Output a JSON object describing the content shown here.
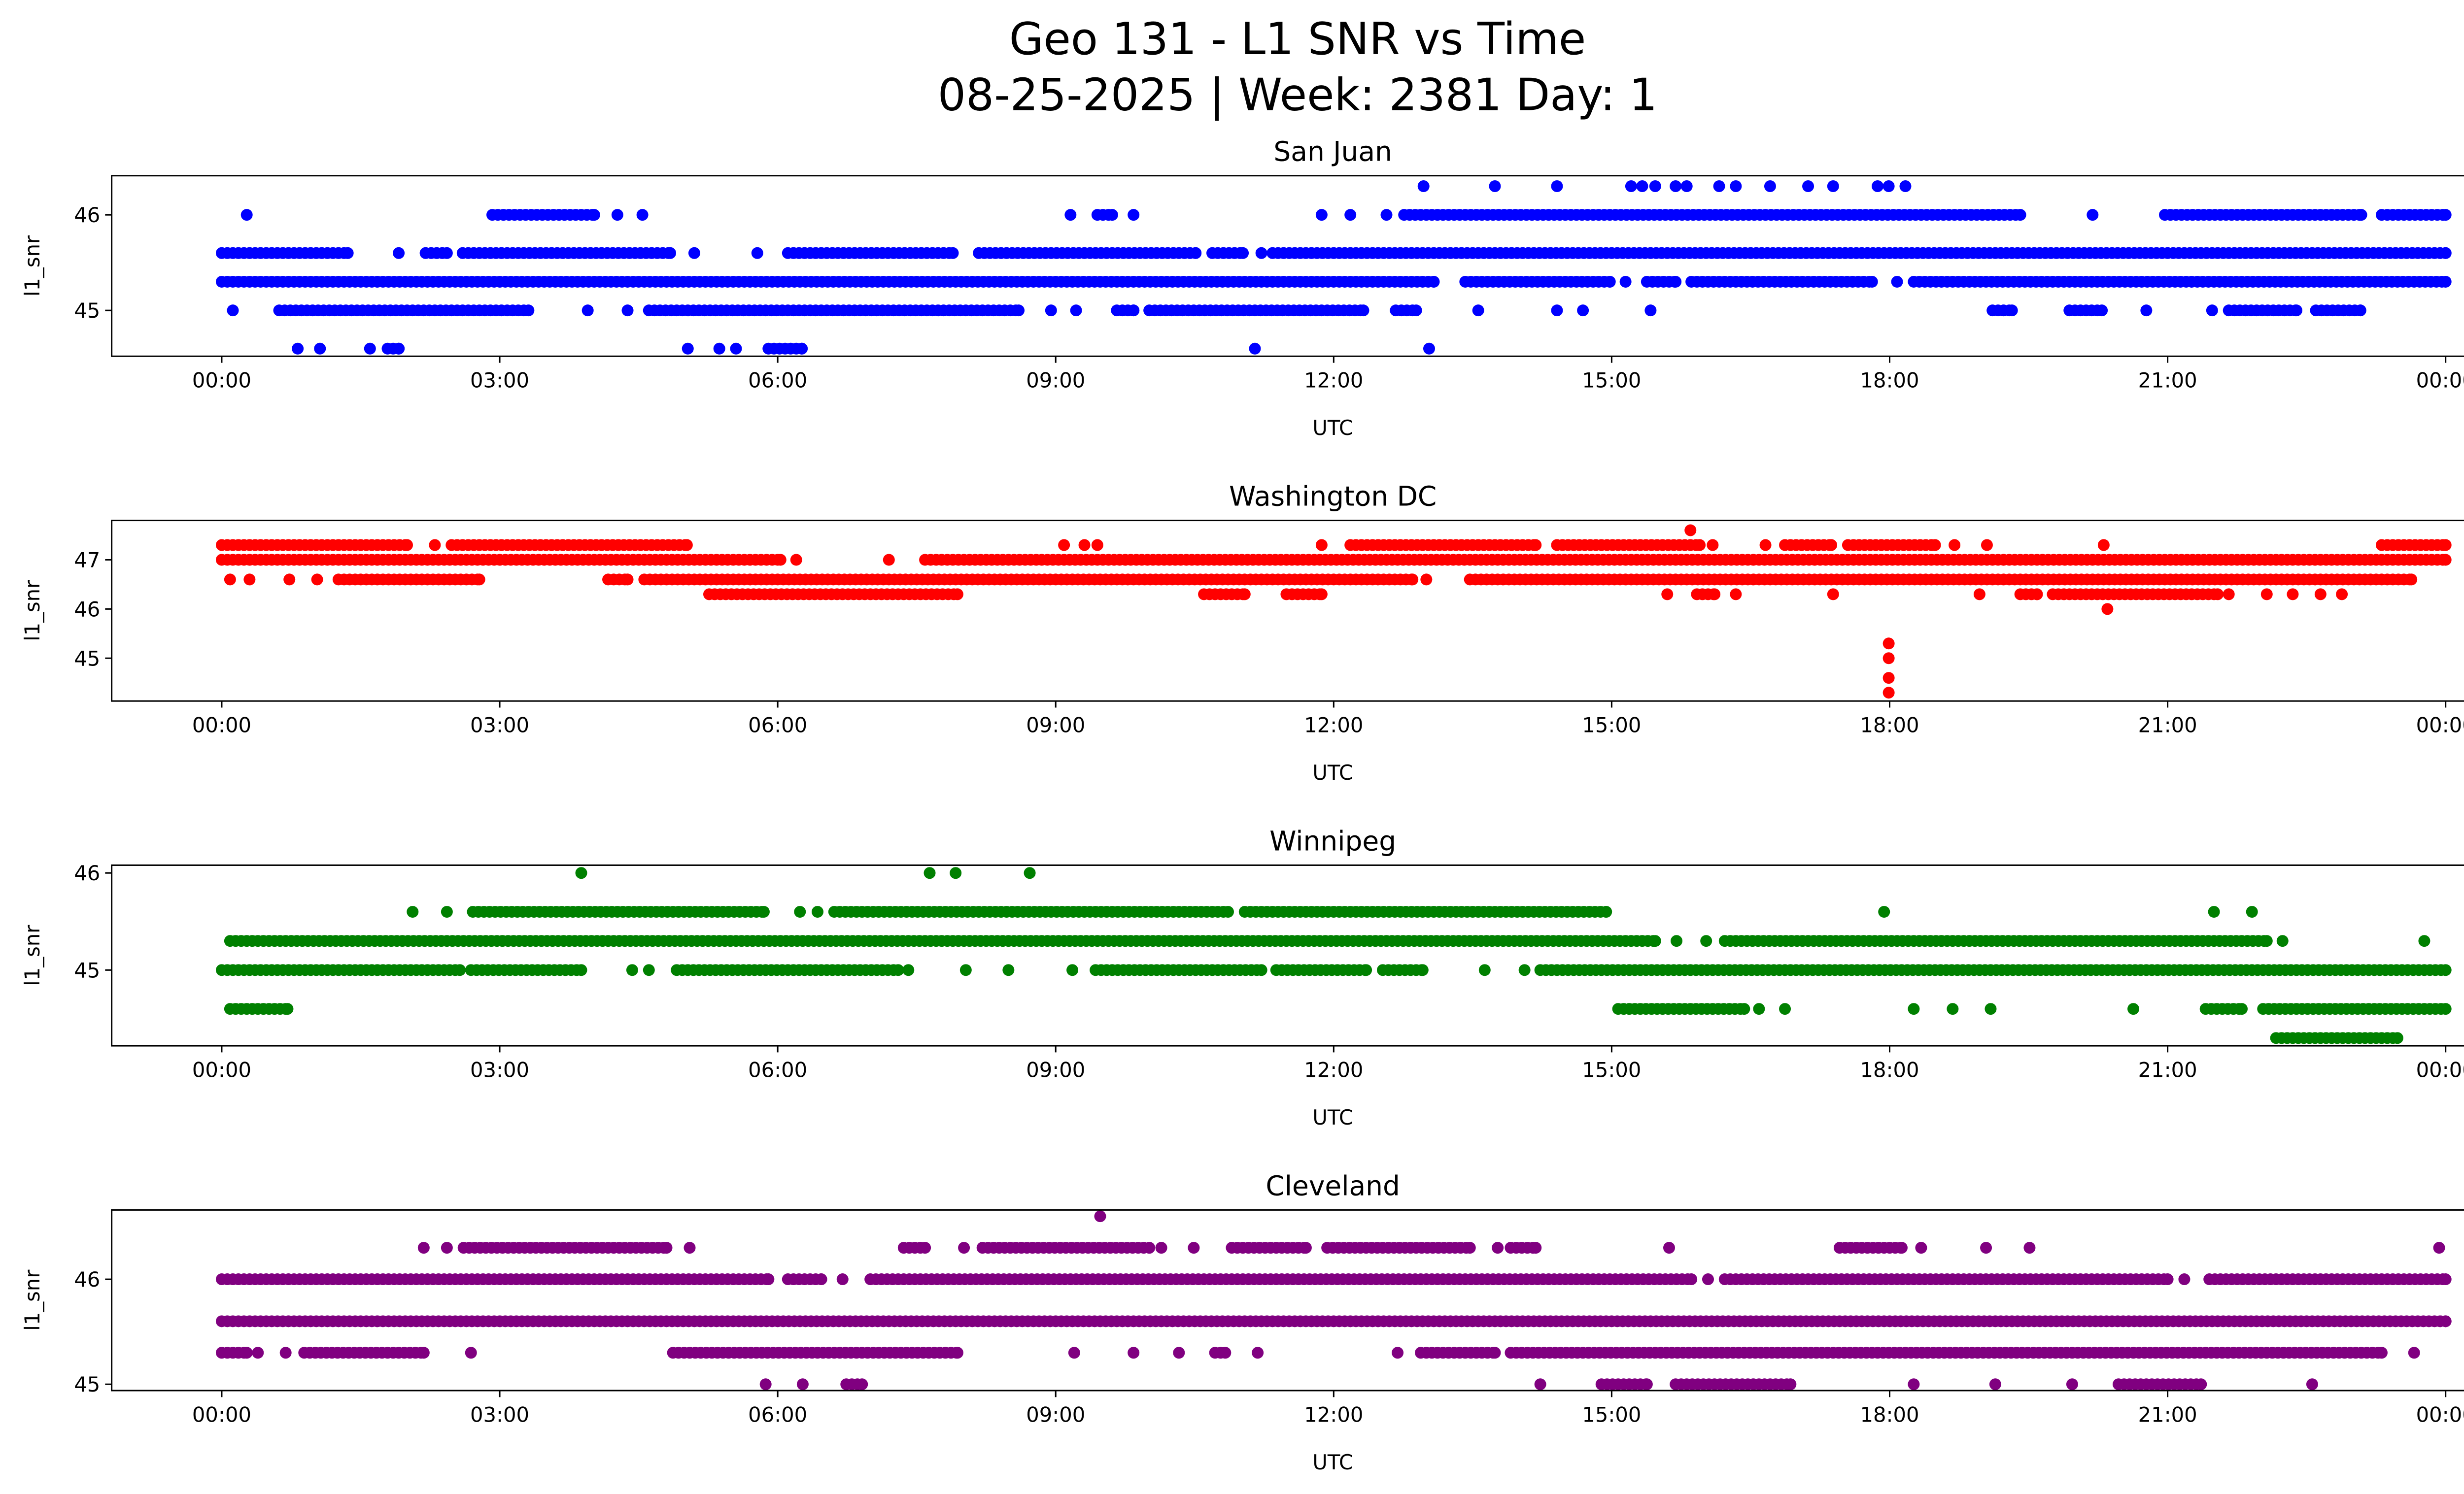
{
  "title": "Geo 131 - L1 SNR vs Time",
  "subtitle": "08-25-2025 | Week: 2381 Day: 1",
  "chart_data": [
    {
      "type": "scatter",
      "title": "San Juan",
      "xlabel": "UTC",
      "ylabel": "l1_snr",
      "color": "#0000ff",
      "xlim": [
        0,
        24
      ],
      "ylim": [
        44.52,
        46.41
      ],
      "xticks": [
        0,
        3,
        6,
        9,
        12,
        15,
        18,
        21,
        24
      ],
      "xtick_labels": [
        "00:00",
        "03:00",
        "06:00",
        "09:00",
        "12:00",
        "15:00",
        "18:00",
        "21:00",
        "00:00"
      ],
      "yticks": [
        45,
        46
      ],
      "ytick_labels": [
        "45",
        "46"
      ],
      "series": [
        {
          "y": 46.3,
          "x": [
            12.97,
            13.74,
            14.41,
            15.21,
            15.33,
            15.47,
            15.69,
            15.81,
            16.16,
            16.34,
            16.71,
            17.12,
            17.39,
            17.87,
            17.99,
            18.17
          ]
        },
        {
          "y": 46.0,
          "x": [
            0.27,
            [
              2.92,
              4.02
            ],
            4.27,
            4.54,
            9.16,
            [
              9.45,
              9.61
            ],
            9.84,
            11.87,
            12.18,
            12.57,
            [
              12.76,
              19.41
            ],
            20.19,
            [
              20.97,
              23.09
            ],
            [
              23.31,
              24
            ]
          ]
        },
        {
          "y": 45.6,
          "x": [
            [
              0,
              1.36
            ],
            1.91,
            [
              2.2,
              2.43
            ],
            [
              2.6,
              4.84
            ],
            5.1,
            5.78,
            [
              6.11,
              7.89
            ],
            [
              8.17,
              10.51
            ],
            [
              10.69,
              11.02
            ],
            11.22,
            [
              11.34,
              24
            ]
          ]
        },
        {
          "y": 45.3,
          "x": [
            [
              0,
              13.08
            ],
            [
              13.42,
              14.98
            ],
            15.15,
            [
              15.38,
              15.69
            ],
            [
              15.86,
              17.81
            ],
            18.08,
            [
              18.26,
              24
            ]
          ]
        },
        {
          "y": 45.0,
          "x": [
            0.12,
            [
              0.62,
              3.31
            ],
            3.95,
            4.38,
            [
              4.61,
              8.6
            ],
            8.95,
            9.22,
            [
              9.66,
              9.84
            ],
            [
              10.01,
              12.32
            ],
            [
              12.67,
              12.89
            ],
            13.56,
            14.41,
            14.69,
            15.42,
            [
              19.11,
              19.32
            ],
            [
              19.94,
              20.29
            ],
            20.77,
            21.48,
            [
              21.66,
              22.39
            ],
            [
              22.6,
              23.08
            ]
          ]
        },
        {
          "y": 44.6,
          "x": [
            0.82,
            1.06,
            1.6,
            [
              1.79,
              1.91
            ],
            5.03,
            5.37,
            5.55,
            [
              5.9,
              6.26
            ],
            11.15,
            13.03
          ]
        }
      ]
    },
    {
      "type": "scatter",
      "title": "Washington DC",
      "xlabel": "UTC",
      "ylabel": "l1_snr",
      "color": "#ff0000",
      "xlim": [
        0,
        24
      ],
      "ylim": [
        44.13,
        47.8
      ],
      "xticks": [
        0,
        3,
        6,
        9,
        12,
        15,
        18,
        21,
        24
      ],
      "xtick_labels": [
        "00:00",
        "03:00",
        "06:00",
        "09:00",
        "12:00",
        "15:00",
        "18:00",
        "21:00",
        "00:00"
      ],
      "yticks": [
        45,
        46,
        47
      ],
      "ytick_labels": [
        "45",
        "46",
        "47"
      ],
      "series": [
        {
          "y": 47.6,
          "x": [
            15.85
          ]
        },
        {
          "y": 47.3,
          "x": [
            [
              0,
              2.0
            ],
            2.3,
            [
              2.48,
              5.02
            ],
            9.09,
            9.31,
            9.45,
            11.87,
            [
              12.18,
              14.18
            ],
            [
              14.41,
              15.95
            ],
            16.09,
            16.66,
            [
              16.87,
              17.37
            ],
            [
              17.55,
              18.49
            ],
            18.7,
            19.05,
            20.31,
            [
              23.31,
              24
            ]
          ]
        },
        {
          "y": 47.0,
          "x": [
            [
              0,
              6.03
            ],
            6.2,
            7.2,
            [
              7.59,
              24
            ]
          ]
        },
        {
          "y": 46.6,
          "x": [
            0.09,
            0.3,
            0.73,
            1.03,
            [
              1.26,
              2.78
            ],
            [
              4.17,
              4.38
            ],
            [
              4.56,
              12.85
            ],
            13.0,
            [
              13.47,
              23.63
            ]
          ]
        },
        {
          "y": 46.3,
          "x": [
            [
              5.26,
              7.94
            ],
            [
              10.6,
              11.04
            ],
            [
              11.49,
              11.87
            ],
            15.6,
            [
              15.92,
              16.11
            ],
            16.34,
            17.39,
            18.97,
            [
              19.41,
              19.59
            ],
            [
              19.76,
              21.54
            ],
            21.66,
            22.07,
            22.35,
            22.65,
            22.88
          ]
        },
        {
          "y": 46.0,
          "x": [
            20.35
          ]
        },
        {
          "y": 45.3,
          "x": [
            17.99
          ]
        },
        {
          "y": 45.0,
          "x": [
            17.99
          ]
        },
        {
          "y": 44.6,
          "x": [
            17.99
          ]
        },
        {
          "y": 44.3,
          "x": [
            17.99
          ]
        }
      ]
    },
    {
      "type": "scatter",
      "title": "Winnipeg",
      "xlabel": "UTC",
      "ylabel": "l1_snr",
      "color": "#008000",
      "xlim": [
        0,
        24
      ],
      "ylim": [
        44.22,
        46.08
      ],
      "xticks": [
        0,
        3,
        6,
        9,
        12,
        15,
        18,
        21,
        24
      ],
      "xtick_labels": [
        "00:00",
        "03:00",
        "06:00",
        "09:00",
        "12:00",
        "15:00",
        "18:00",
        "21:00",
        "00:00"
      ],
      "yticks": [
        45,
        46
      ],
      "ytick_labels": [
        "45",
        "46"
      ],
      "series": [
        {
          "y": 46.0,
          "x": [
            3.88,
            7.64,
            7.92,
            8.72
          ]
        },
        {
          "y": 45.6,
          "x": [
            2.06,
            2.43,
            [
              2.71,
              5.85
            ],
            6.24,
            6.43,
            [
              6.61,
              10.86
            ],
            [
              11.04,
              14.94
            ],
            17.94,
            21.5,
            21.91
          ]
        },
        {
          "y": 45.3,
          "x": [
            [
              0.09,
              15.47
            ],
            15.7,
            16.02,
            [
              16.22,
              22.07
            ],
            22.24,
            23.77
          ]
        },
        {
          "y": 45.0,
          "x": [
            [
              0,
              2.57
            ],
            [
              2.69,
              3.88
            ],
            4.43,
            4.61,
            [
              4.91,
              7.3
            ],
            7.41,
            8.03,
            8.49,
            9.18,
            [
              9.43,
              11.22
            ],
            [
              11.38,
              12.35
            ],
            [
              12.53,
              12.96
            ],
            13.63,
            14.06,
            [
              14.23,
              24
            ]
          ]
        },
        {
          "y": 44.6,
          "x": [
            [
              0.09,
              0.71
            ],
            [
              15.07,
              16.43
            ],
            16.59,
            16.87,
            18.26,
            18.68,
            19.09,
            20.63,
            [
              21.41,
              21.8
            ],
            [
              22.03,
              24
            ]
          ]
        },
        {
          "y": 44.3,
          "x": [
            [
              22.17,
              23.48
            ]
          ]
        }
      ]
    },
    {
      "type": "scatter",
      "title": "Cleveland",
      "xlabel": "UTC",
      "ylabel": "l1_snr",
      "color": "#800080",
      "xlim": [
        0,
        24
      ],
      "ylim": [
        44.94,
        46.66
      ],
      "xticks": [
        0,
        3,
        6,
        9,
        12,
        15,
        18,
        21,
        24
      ],
      "xtick_labels": [
        "00:00",
        "03:00",
        "06:00",
        "09:00",
        "12:00",
        "15:00",
        "18:00",
        "21:00",
        "00:00"
      ],
      "yticks": [
        45,
        46
      ],
      "ytick_labels": [
        "45",
        "46"
      ],
      "series": [
        {
          "y": 46.6,
          "x": [
            9.48
          ]
        },
        {
          "y": 46.3,
          "x": [
            2.18,
            2.43,
            [
              2.61,
              4.8
            ],
            5.05,
            [
              7.36,
              7.59
            ],
            8.01,
            [
              8.21,
              10.01
            ],
            10.14,
            10.49,
            [
              10.9,
              11.7
            ],
            [
              11.93,
              13.47
            ],
            13.77,
            [
              13.91,
              14.18
            ],
            15.62,
            [
              17.46,
              18.13
            ],
            18.34,
            19.04,
            19.51,
            23.93
          ]
        },
        {
          "y": 46.0,
          "x": [
            [
              0,
              5.9
            ],
            [
              6.11,
              6.47
            ],
            6.7,
            [
              7.0,
              15.86
            ],
            16.04,
            [
              16.22,
              21.0
            ],
            21.18,
            [
              21.45,
              24
            ]
          ]
        },
        {
          "y": 45.6,
          "x": [
            [
              0,
              24
            ]
          ]
        },
        {
          "y": 45.3,
          "x": [
            [
              0,
              0.27
            ],
            0.39,
            0.69,
            [
              0.89,
              2.18
            ],
            2.69,
            [
              4.87,
              7.94
            ],
            9.2,
            9.84,
            10.33,
            [
              10.72,
              10.83
            ],
            11.18,
            12.69,
            [
              12.94,
              13.74
            ],
            [
              13.91,
              23.31
            ],
            23.66
          ]
        },
        {
          "y": 45.0,
          "x": [
            5.87,
            6.27,
            [
              6.74,
              6.91
            ],
            14.23,
            [
              14.89,
              15.38
            ],
            [
              15.69,
              16.93
            ],
            18.26,
            19.14,
            19.97,
            [
              20.47,
              21.36
            ],
            22.56
          ]
        }
      ]
    }
  ]
}
